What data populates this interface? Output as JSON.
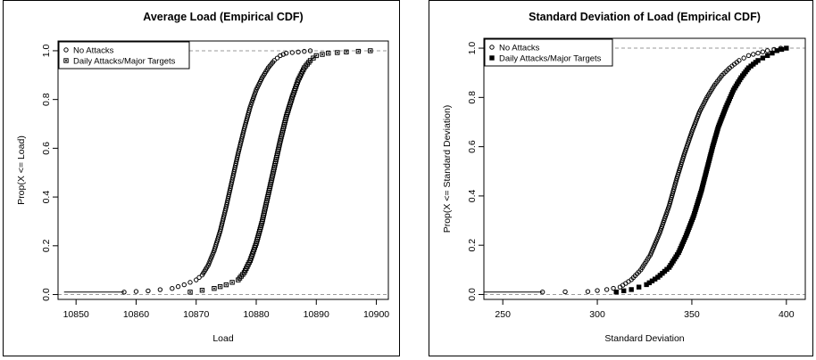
{
  "chart_data": [
    {
      "type": "scatter",
      "title": "Average Load (Empirical CDF)",
      "xlabel": "Load",
      "ylabel": "Prop(X <= Load)",
      "xlim": [
        10847,
        10902
      ],
      "ylim": [
        -0.02,
        1.04
      ],
      "xticks": [
        10850,
        10860,
        10870,
        10880,
        10890,
        10900
      ],
      "yticks": [
        0.0,
        0.2,
        0.4,
        0.6,
        0.8,
        1.0
      ],
      "xtick_labels": [
        "10850",
        "10860",
        "10870",
        "10880",
        "10890",
        "10900"
      ],
      "ytick_labels": [
        "0.0",
        "0.2",
        "0.4",
        "0.6",
        "0.8",
        "1.0"
      ],
      "reference_lines": [
        0,
        1
      ],
      "legend_position": "top-left",
      "series": [
        {
          "name": "No Attacks",
          "marker": "open-circle",
          "points": [
            [
              10858,
              0.01
            ],
            [
              10862,
              0.015
            ],
            [
              10866,
              0.025
            ],
            [
              10868,
              0.04
            ],
            [
              10870,
              0.06
            ],
            [
              10871,
              0.08
            ],
            [
              10872,
              0.12
            ],
            [
              10873,
              0.18
            ],
            [
              10874,
              0.26
            ],
            [
              10875,
              0.36
            ],
            [
              10876,
              0.47
            ],
            [
              10877,
              0.58
            ],
            [
              10878,
              0.68
            ],
            [
              10879,
              0.77
            ],
            [
              10880,
              0.84
            ],
            [
              10881,
              0.89
            ],
            [
              10882,
              0.93
            ],
            [
              10883,
              0.96
            ],
            [
              10884,
              0.98
            ],
            [
              10885,
              0.99
            ],
            [
              10887,
              0.995
            ],
            [
              10889,
              1.0
            ]
          ]
        },
        {
          "name": "Daily Attacks/Major Targets",
          "marker": "square-dot",
          "points": [
            [
              10869,
              0.01
            ],
            [
              10873,
              0.025
            ],
            [
              10875,
              0.04
            ],
            [
              10877,
              0.06
            ],
            [
              10878,
              0.09
            ],
            [
              10879,
              0.14
            ],
            [
              10880,
              0.21
            ],
            [
              10881,
              0.3
            ],
            [
              10882,
              0.41
            ],
            [
              10883,
              0.52
            ],
            [
              10884,
              0.63
            ],
            [
              10885,
              0.73
            ],
            [
              10886,
              0.81
            ],
            [
              10887,
              0.88
            ],
            [
              10888,
              0.93
            ],
            [
              10889,
              0.96
            ],
            [
              10890,
              0.98
            ],
            [
              10892,
              0.99
            ],
            [
              10895,
              0.995
            ],
            [
              10899,
              1.0
            ]
          ]
        }
      ],
      "step_line_start": 10848
    },
    {
      "type": "scatter",
      "title": "Standard Deviation of Load (Empirical CDF)",
      "xlabel": "Standard Deviation",
      "ylabel": "Prop(X <= Standard Deviation)",
      "xlim": [
        240,
        410
      ],
      "ylim": [
        -0.02,
        1.04
      ],
      "xticks": [
        250,
        300,
        350,
        400
      ],
      "yticks": [
        0.0,
        0.2,
        0.4,
        0.6,
        0.8,
        1.0
      ],
      "xtick_labels": [
        "250",
        "300",
        "350",
        "400"
      ],
      "ytick_labels": [
        "0.0",
        "0.2",
        "0.4",
        "0.6",
        "0.8",
        "1.0"
      ],
      "reference_lines": [
        0,
        1
      ],
      "legend_position": "top-left",
      "series": [
        {
          "name": "No Attacks",
          "marker": "open-circle",
          "points": [
            [
              271,
              0.01
            ],
            [
              295,
              0.012
            ],
            [
              305,
              0.02
            ],
            [
              312,
              0.03
            ],
            [
              318,
              0.06
            ],
            [
              323,
              0.1
            ],
            [
              328,
              0.16
            ],
            [
              333,
              0.25
            ],
            [
              338,
              0.36
            ],
            [
              342,
              0.47
            ],
            [
              346,
              0.57
            ],
            [
              350,
              0.66
            ],
            [
              354,
              0.74
            ],
            [
              358,
              0.8
            ],
            [
              362,
              0.85
            ],
            [
              366,
              0.89
            ],
            [
              370,
              0.92
            ],
            [
              375,
              0.95
            ],
            [
              380,
              0.97
            ],
            [
              385,
              0.98
            ],
            [
              390,
              0.99
            ],
            [
              397,
              1.0
            ]
          ]
        },
        {
          "name": "Daily Attacks/Major Targets",
          "marker": "filled-square",
          "points": [
            [
              310,
              0.01
            ],
            [
              318,
              0.02
            ],
            [
              326,
              0.04
            ],
            [
              332,
              0.07
            ],
            [
              338,
              0.11
            ],
            [
              343,
              0.17
            ],
            [
              347,
              0.24
            ],
            [
              351,
              0.32
            ],
            [
              355,
              0.42
            ],
            [
              358,
              0.51
            ],
            [
              361,
              0.6
            ],
            [
              364,
              0.68
            ],
            [
              368,
              0.76
            ],
            [
              372,
              0.83
            ],
            [
              376,
              0.88
            ],
            [
              380,
              0.92
            ],
            [
              385,
              0.95
            ],
            [
              390,
              0.97
            ],
            [
              395,
              0.99
            ],
            [
              400,
              1.0
            ]
          ]
        }
      ],
      "step_line_start": 240
    }
  ]
}
